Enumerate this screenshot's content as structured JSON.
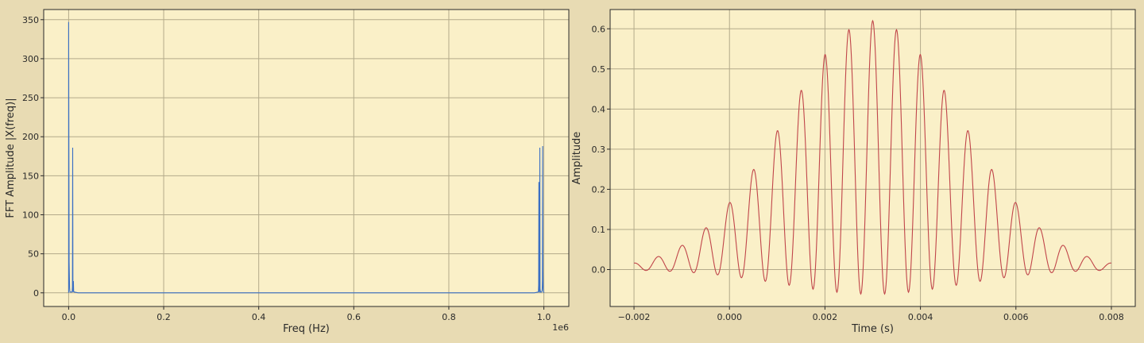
{
  "chart_data": [
    {
      "type": "line",
      "xlabel": "Freq (Hz)",
      "ylabel": "FFT Amplitude |X(freq)|",
      "x_offset_label": "1e6",
      "xlim": [
        -0.0525,
        1.0525
      ],
      "ylim": [
        -17.5,
        363
      ],
      "xticks": [
        0.0,
        0.2,
        0.4,
        0.6,
        0.8,
        1.0
      ],
      "xtick_labels": [
        "0.0",
        "0.2",
        "0.4",
        "0.6",
        "0.8",
        "1.0"
      ],
      "yticks": [
        0,
        50,
        100,
        150,
        200,
        250,
        300,
        350
      ],
      "ytick_labels": [
        "0",
        "50",
        "100",
        "150",
        "200",
        "250",
        "300",
        "350"
      ],
      "grid": true,
      "line_color": "#3a6fc4",
      "series": [
        {
          "x": [
            0.0,
            0.0,
            0.0005,
            0.001,
            0.002,
            0.0025,
            0.003,
            0.0035,
            0.004,
            0.005,
            0.006,
            0.007,
            0.0075,
            0.008,
            0.0085,
            0.009,
            0.0095,
            0.01,
            0.0105,
            0.012,
            0.02,
            0.5,
            0.98,
            0.988,
            0.9885,
            0.989,
            0.9895,
            0.99,
            0.9905,
            0.991,
            0.9915,
            0.992,
            0.993,
            0.994,
            0.995,
            0.996,
            0.9965,
            0.997,
            0.9975,
            0.998,
            0.9985,
            0.999,
            1.0
          ],
          "y": [
            0,
            347,
            188,
            40,
            6,
            2,
            1,
            1,
            1,
            1,
            1,
            1,
            2,
            8,
            186,
            3,
            1,
            15,
            2,
            1,
            0,
            0,
            0,
            1,
            2,
            10,
            142,
            4,
            1,
            1,
            186,
            5,
            1,
            1,
            1,
            2,
            4,
            16,
            188,
            30,
            6,
            2,
            0
          ]
        }
      ]
    },
    {
      "type": "line",
      "xlabel": "Time (s)",
      "ylabel": "Amplitude",
      "xlim": [
        -0.0025,
        0.0085
      ],
      "ylim": [
        -0.092,
        0.648
      ],
      "xticks": [
        -0.002,
        0.0,
        0.002,
        0.004,
        0.006,
        0.008
      ],
      "xtick_labels": [
        "−0.002",
        "0.000",
        "0.002",
        "0.004",
        "0.006",
        "0.008"
      ],
      "yticks": [
        0.0,
        0.1,
        0.2,
        0.3,
        0.4,
        0.5,
        0.6
      ],
      "ytick_labels": [
        "0.0",
        "0.1",
        "0.2",
        "0.3",
        "0.4",
        "0.5",
        "0.6"
      ],
      "grid": true,
      "line_color": "#c0454a",
      "series": [
        {
          "x_start": -0.002,
          "x_end": 0.008,
          "x_step": 1e-05,
          "y": "generated by the page script from the plotted waveform"
        }
      ]
    }
  ]
}
